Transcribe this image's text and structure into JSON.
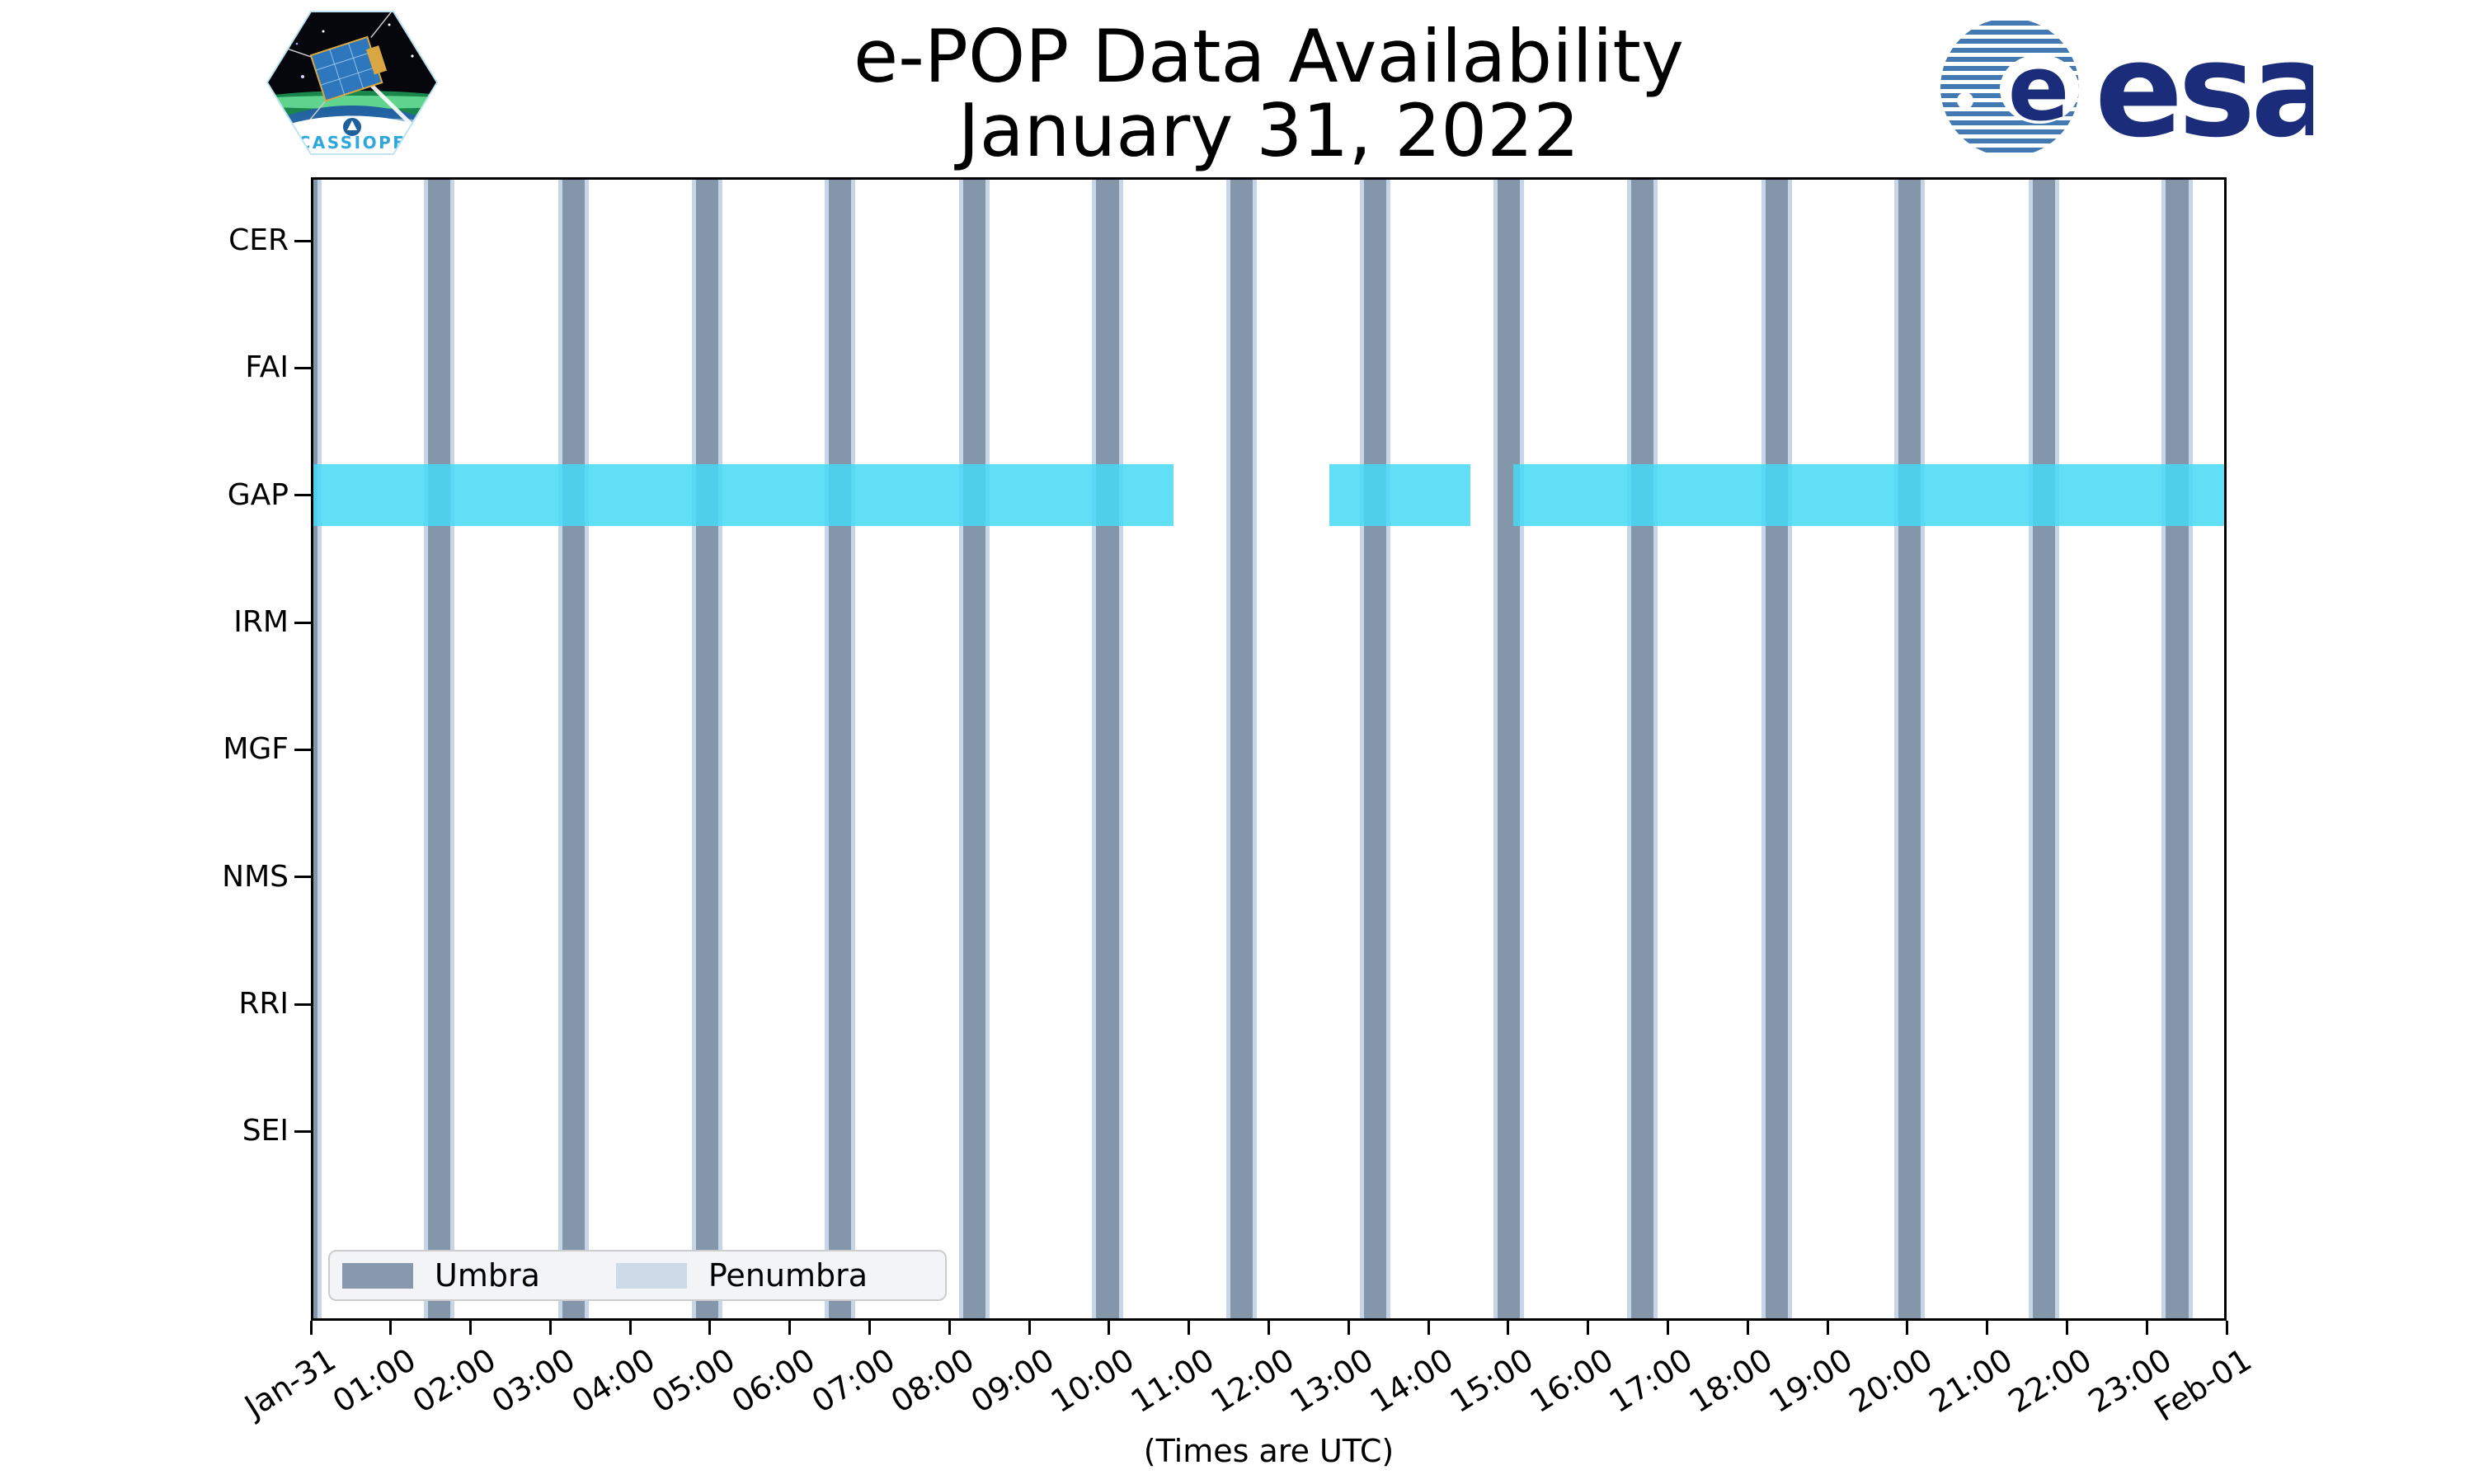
{
  "header": {
    "title_line1": "e-POP Data Availability",
    "title_line2": "January 31, 2022",
    "cassiope_badge_text": "CASSIOPE",
    "esa_wordmark": "esa"
  },
  "chart_data": {
    "type": "timeline",
    "title": "e-POP Data Availability",
    "subtitle": "January 31, 2022",
    "xlabel": "(Times are UTC)",
    "x_range_hours": [
      0,
      24
    ],
    "x_tick_labels": [
      "Jan-31",
      "01:00",
      "02:00",
      "03:00",
      "04:00",
      "05:00",
      "06:00",
      "07:00",
      "08:00",
      "09:00",
      "10:00",
      "11:00",
      "12:00",
      "13:00",
      "14:00",
      "15:00",
      "16:00",
      "17:00",
      "18:00",
      "19:00",
      "20:00",
      "21:00",
      "22:00",
      "23:00",
      "Feb-01"
    ],
    "y_categories": [
      "CER",
      "FAI",
      "GAP",
      "IRM",
      "MGF",
      "NMS",
      "RRI",
      "SEI"
    ],
    "legend": [
      {
        "label": "Umbra",
        "color": "#8496aa"
      },
      {
        "label": "Penumbra",
        "color": "#cdd bea"
      }
    ],
    "umbra_windows_hours": [
      [
        -0.21,
        0.08
      ],
      [
        1.47,
        1.75
      ],
      [
        3.15,
        3.43
      ],
      [
        4.82,
        5.1
      ],
      [
        6.49,
        6.77
      ],
      [
        8.17,
        8.45
      ],
      [
        9.84,
        10.12
      ],
      [
        11.52,
        11.8
      ],
      [
        13.19,
        13.47
      ],
      [
        14.87,
        15.15
      ],
      [
        16.54,
        16.82
      ],
      [
        18.22,
        18.5
      ],
      [
        19.89,
        20.17
      ],
      [
        21.57,
        21.85
      ],
      [
        23.24,
        23.52
      ]
    ],
    "penumbra_pad_hours": 0.052,
    "availability": {
      "GAP": [
        [
          0.0,
          10.81
        ],
        [
          12.76,
          14.53
        ],
        [
          15.06,
          24.0
        ]
      ]
    },
    "colors": {
      "umbra": "#8496aa",
      "penumbra": "#c6d6e6",
      "gap_bar": "#45d9f6",
      "spine": "#000000",
      "legend_bg": "#f2f4f8",
      "legend_border": "#cccccc",
      "legend_umbra_swatch": "#8999ad",
      "legend_penumbra_swatch": "#cddbe9",
      "esa_navy": "#1b2d7a",
      "esa_globe_blue": "#3f74ad",
      "cassiope_blue": "#2da7dc"
    }
  }
}
